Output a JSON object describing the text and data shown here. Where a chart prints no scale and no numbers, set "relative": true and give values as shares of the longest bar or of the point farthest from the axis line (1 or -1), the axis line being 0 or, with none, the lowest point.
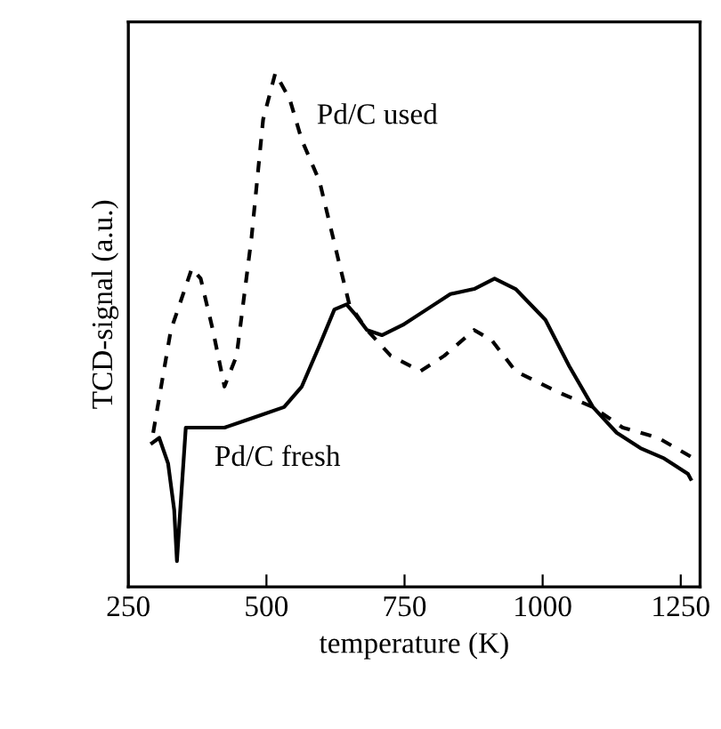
{
  "chart_data": {
    "type": "line",
    "relative": true,
    "xlabel": "temperature (K)",
    "ylabel": "TCD-signal (a.u.)",
    "xlim": [
      250,
      1285
    ],
    "xticks": [
      250,
      500,
      750,
      1000,
      1250
    ],
    "tick_labels": "x",
    "grid": false,
    "legend": false,
    "marker": "none",
    "series": [
      {
        "name": "Pd/C used",
        "color": "#000000",
        "line_style": "dashed",
        "x": [
          295,
          327,
          365,
          381,
          403,
          424,
          446,
          473,
          494,
          516,
          542,
          564,
          596,
          634,
          650,
          682,
          725,
          779,
          822,
          876,
          908,
          951,
          1026,
          1091,
          1145,
          1209,
          1274
        ],
        "values": [
          0.3,
          0.5,
          0.62,
          0.6,
          0.5,
          0.39,
          0.45,
          0.68,
          0.91,
          1.0,
          0.95,
          0.87,
          0.79,
          0.62,
          0.55,
          0.5,
          0.45,
          0.42,
          0.45,
          0.5,
          0.48,
          0.42,
          0.38,
          0.35,
          0.31,
          0.29,
          0.25
        ]
      },
      {
        "name": "Pd/C fresh",
        "color": "#000000",
        "line_style": "solid",
        "x": [
          293,
          306,
          322,
          333,
          338,
          344,
          354,
          370,
          424,
          478,
          532,
          564,
          596,
          623,
          645,
          661,
          682,
          709,
          747,
          790,
          833,
          876,
          913,
          951,
          1005,
          1048,
          1091,
          1134,
          1177,
          1220,
          1263,
          1268
        ],
        "values": [
          0.28,
          0.29,
          0.24,
          0.15,
          0.05,
          0.15,
          0.31,
          0.31,
          0.31,
          0.33,
          0.35,
          0.39,
          0.47,
          0.54,
          0.55,
          0.53,
          0.5,
          0.49,
          0.51,
          0.54,
          0.57,
          0.58,
          0.6,
          0.58,
          0.52,
          0.43,
          0.35,
          0.3,
          0.27,
          0.25,
          0.22,
          0.21
        ]
      }
    ]
  }
}
